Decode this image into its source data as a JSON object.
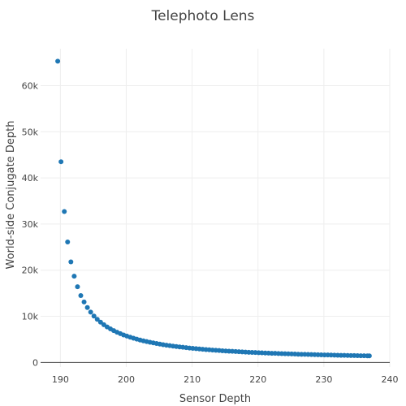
{
  "chart_data": {
    "type": "scatter",
    "title": "Telephoto Lens",
    "xlabel": "Sensor Depth",
    "ylabel": "World-side Conjugate Depth",
    "xlim": [
      187,
      240
    ],
    "ylim": [
      -1000,
      68000
    ],
    "x_ticks": [
      190,
      200,
      210,
      220,
      230,
      240
    ],
    "x_tick_labels": [
      "190",
      "200",
      "210",
      "220",
      "230",
      "240"
    ],
    "y_ticks": [
      0,
      10000,
      20000,
      30000,
      40000,
      50000,
      60000
    ],
    "y_tick_labels": [
      "0",
      "10k",
      "20k",
      "30k",
      "40k",
      "50k",
      "60k"
    ],
    "grid": true,
    "marker_color": "#1f77b4",
    "series": [
      {
        "x": [
          189.6,
          190.1,
          190.6,
          191.1,
          191.6,
          192.1,
          192.6,
          193.1,
          193.6,
          194.1,
          194.6,
          195.1,
          195.6,
          196.1,
          196.6,
          197.1,
          197.6,
          198.1,
          198.6,
          199.1,
          199.6,
          200.1,
          200.6,
          201.1,
          201.6,
          202.1,
          202.6,
          203.1,
          203.6,
          204.1,
          204.6,
          205.1,
          205.6,
          206.1,
          206.6,
          207.1,
          207.6,
          208.1,
          208.6,
          209.1,
          209.6,
          210.1,
          210.6,
          211.1,
          211.6,
          212.1,
          212.6,
          213.1,
          213.6,
          214.1,
          214.6,
          215.1,
          215.6,
          216.1,
          216.6,
          217.1,
          217.6,
          218.1,
          218.6,
          219.1,
          219.6,
          220.1,
          220.6,
          221.1,
          221.6,
          222.1,
          222.6,
          223.1,
          223.6,
          224.1,
          224.6,
          225.1,
          225.6,
          226.1,
          226.6,
          227.1,
          227.6,
          228.1,
          228.6,
          229.1,
          229.6,
          230.1,
          230.6,
          231.1,
          231.6,
          232.1,
          232.6,
          233.1,
          233.6,
          234.1,
          234.6,
          235.1,
          235.6,
          236.1,
          236.6,
          236.9
        ],
        "y": [
          65300,
          43500,
          32700,
          26100,
          21800,
          18700,
          16400,
          14500,
          13100,
          11900,
          10900,
          10050,
          9350,
          8720,
          8180,
          7700,
          7270,
          6890,
          6550,
          6240,
          5960,
          5700,
          5460,
          5240,
          5040,
          4850,
          4680,
          4520,
          4370,
          4230,
          4100,
          3970,
          3850,
          3740,
          3640,
          3540,
          3450,
          3360,
          3280,
          3200,
          3120,
          3050,
          2980,
          2920,
          2850,
          2790,
          2740,
          2680,
          2630,
          2580,
          2530,
          2480,
          2440,
          2400,
          2360,
          2320,
          2280,
          2240,
          2200,
          2170,
          2140,
          2100,
          2070,
          2040,
          2010,
          1980,
          1960,
          1930,
          1900,
          1880,
          1850,
          1830,
          1810,
          1780,
          1760,
          1740,
          1720,
          1700,
          1680,
          1660,
          1640,
          1620,
          1610,
          1590,
          1570,
          1560,
          1540,
          1520,
          1510,
          1490,
          1480,
          1460,
          1450,
          1440,
          1420,
          1410
        ]
      }
    ]
  }
}
